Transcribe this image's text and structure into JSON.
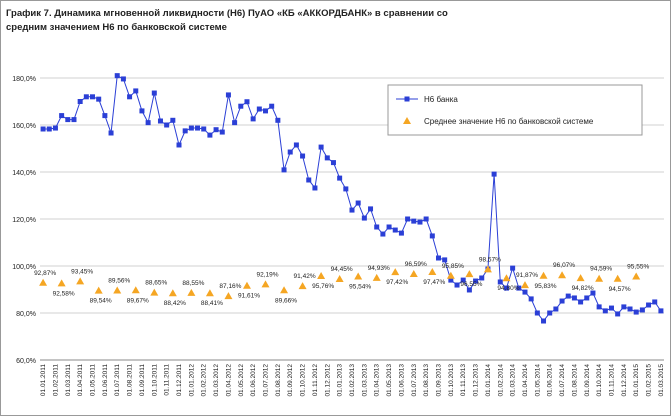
{
  "chart_data": {
    "type": "line",
    "title": [
      "График 7. Динамика мгновенной ликвидности (Н6) ПуАО «КБ «АККОРДБАНК» в сравнении со",
      "средним значением Н6 по банковской системе"
    ],
    "categories": [
      "01.01.2011",
      null,
      "01.02.2011",
      null,
      "01.03.2011",
      null,
      "01.04.2011",
      null,
      "01.05.2011",
      null,
      "01.06.2011",
      null,
      "01.07.2011",
      null,
      "01.08.2011",
      null,
      "01.09.2011",
      null,
      "01.10.2011",
      null,
      "01.11.2011",
      null,
      "01.12.2011",
      null,
      "01.01.2012",
      null,
      "01.02.2012",
      null,
      "01.03.2012",
      null,
      "01.04.2012",
      null,
      "01.05.2012",
      null,
      "01.06.2012",
      null,
      "01.07.2012",
      null,
      "01.08.2012",
      null,
      "01.09.2012",
      null,
      "01.10.2012",
      null,
      "01.11.2012",
      null,
      "01.12.2012",
      null,
      "01.01.2013",
      null,
      "01.02.2013",
      null,
      "01.03.2013",
      null,
      "01.04.2013",
      null,
      "01.05.2013",
      null,
      "01.06.2013",
      null,
      "01.07.2013",
      null,
      "01.08.2013",
      null,
      "01.09.2013",
      null,
      "01.10.2013",
      null,
      "01.11.2013",
      null,
      "01.12.2013",
      null,
      "01.01.2014",
      null,
      "01.02.2014",
      null,
      "01.03.2014",
      null,
      "01.04.2014",
      null,
      "01.05.2014",
      null,
      "01.06.2014",
      null,
      "01.07.2014",
      null,
      "01.08.2014",
      null,
      "01.09.2014",
      null,
      "01.10.2014",
      null,
      "01.11.2014",
      null,
      "01.12.2014",
      null,
      "01.01.2015",
      null,
      "01.02.2015",
      null,
      "01.03.2015"
    ],
    "series": [
      {
        "name": "Н6 банка",
        "color": "#2b3fd6",
        "marker": "square",
        "values": [
          158.3,
          158.3,
          158.7,
          164,
          162.3,
          162.3,
          170,
          172,
          172,
          171,
          164,
          156.6,
          181,
          179.6,
          172,
          174.5,
          166,
          161,
          173.6,
          161.7,
          160,
          162,
          151.5,
          157.5,
          158.7,
          158.7,
          158.3,
          155.7,
          158,
          157,
          172.8,
          161,
          168,
          169.9,
          162.6,
          166.8,
          166,
          168,
          162,
          140.9,
          148.5,
          151.5,
          146.8,
          136.6,
          133.2,
          150.6,
          146,
          144,
          137.4,
          132.8,
          123.8,
          126.8,
          120.4,
          124.3,
          116.6,
          113.6,
          116.6,
          115.3,
          114,
          120,
          119.1,
          118.7,
          120,
          112.8,
          103.4,
          102.6,
          94,
          91.9,
          94,
          89.8,
          93.6,
          94.9,
          98.7,
          139.1,
          93.2,
          90.6,
          99.1,
          90.6,
          88.9,
          86,
          80,
          76.6,
          80,
          81.7,
          85.1,
          87.2,
          86.4,
          84.7,
          86.4,
          88.5,
          82.6,
          80.9,
          82.1,
          79.6,
          82.6,
          81.7,
          80.4,
          81.3,
          83.4,
          84.7,
          80.9
        ]
      },
      {
        "name": "Среднее значение Н6 по банковской системе",
        "color": "#f5a623",
        "marker": "triangle",
        "values": [
          92.87,
          null,
          null,
          92.58,
          null,
          null,
          93.45,
          null,
          null,
          89.54,
          null,
          null,
          89.56,
          null,
          null,
          89.67,
          null,
          null,
          88.65,
          null,
          null,
          88.42,
          null,
          null,
          88.55,
          null,
          null,
          88.41,
          null,
          null,
          87.16,
          null,
          null,
          91.61,
          null,
          null,
          92.19,
          null,
          null,
          89.66,
          null,
          null,
          91.42,
          null,
          null,
          95.76,
          null,
          null,
          94.45,
          null,
          null,
          95.54,
          null,
          null,
          94.93,
          null,
          null,
          97.42,
          null,
          null,
          96.59,
          null,
          null,
          97.47,
          null,
          null,
          95.85,
          null,
          null,
          96.55,
          null,
          null,
          98.57,
          null,
          null,
          94.8,
          null,
          null,
          91.87,
          null,
          null,
          95.83,
          null,
          null,
          96.07,
          null,
          null,
          94.82,
          null,
          null,
          94.59,
          null,
          null,
          94.57,
          null,
          null,
          95.55,
          null,
          null,
          null,
          null
        ],
        "value_labels": [
          "92,87%",
          null,
          null,
          "92,58%",
          null,
          null,
          "93,45%",
          null,
          null,
          "89,54%",
          null,
          null,
          "89,56%",
          null,
          null,
          "89,67%",
          null,
          null,
          "88,65%",
          null,
          null,
          "88,42%",
          null,
          null,
          "88,55%",
          null,
          null,
          "88,41%",
          null,
          null,
          "87,16%",
          null,
          null,
          "91,61%",
          null,
          null,
          "92,19%",
          null,
          null,
          "89,66%",
          null,
          null,
          "91,42%",
          null,
          null,
          "95,76%",
          null,
          null,
          "94,45%",
          null,
          null,
          "95,54%",
          null,
          null,
          "94,93%",
          null,
          null,
          "97,42%",
          null,
          null,
          "96,59%",
          null,
          null,
          "97,47%",
          null,
          null,
          "95,85%",
          null,
          null,
          "96,55%",
          null,
          null,
          "98,57%",
          null,
          null,
          "94,80%",
          null,
          null,
          "91,87%",
          null,
          null,
          "95,83%",
          null,
          null,
          "96,07%",
          null,
          null,
          "94,82%",
          null,
          null,
          "94,59%",
          null,
          null,
          "94,57%",
          null,
          null,
          "95,55%",
          null,
          null,
          null,
          null
        ]
      }
    ],
    "ylim": [
      60,
      180
    ],
    "yticks": [
      {
        "value": 60,
        "label": "60,0%"
      },
      {
        "value": 80,
        "label": "80,0%"
      },
      {
        "value": 100,
        "label": "100,0%"
      },
      {
        "value": 120,
        "label": "120,0%"
      },
      {
        "value": 140,
        "label": "140,0%"
      },
      {
        "value": 160,
        "label": "160,0%"
      },
      {
        "value": 180,
        "label": "180,0%"
      }
    ],
    "grid": true,
    "legend": "upper right"
  }
}
